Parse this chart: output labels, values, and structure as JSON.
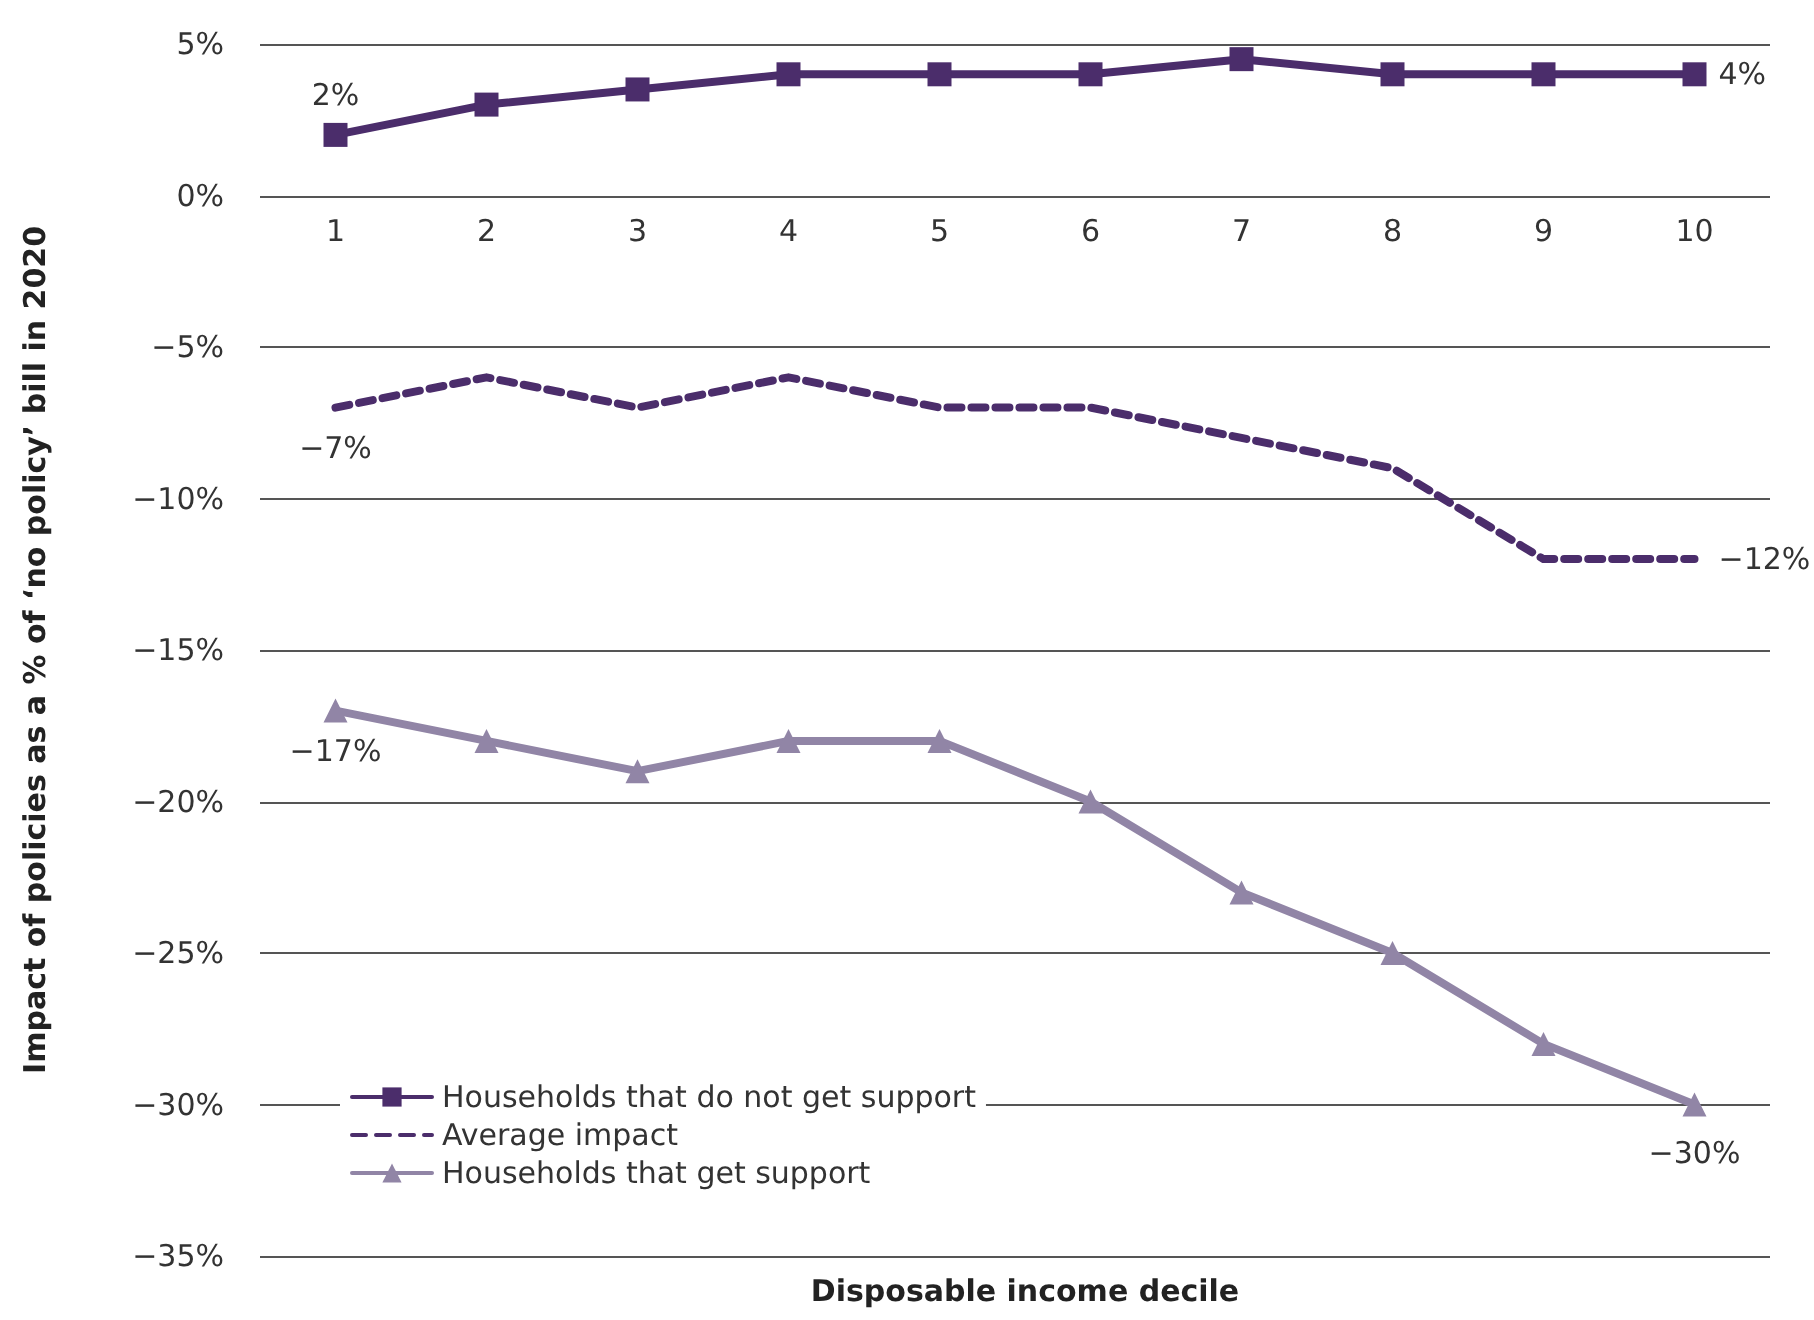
{
  "chart_data": {
    "type": "line",
    "xlabel": "Disposable income decile",
    "ylabel": "Impact of policies as a % of ‘no policy’ bill in 2020",
    "categories": [
      "1",
      "2",
      "3",
      "4",
      "5",
      "6",
      "7",
      "8",
      "9",
      "10"
    ],
    "series": [
      {
        "name": "Households that do not get support",
        "color": "#4b2d6b",
        "marker": "square",
        "line_style": "solid",
        "values": [
          2,
          3,
          3.5,
          4,
          4,
          4,
          4.5,
          4,
          4,
          4
        ]
      },
      {
        "name": "Average impact",
        "color": "#4b2d6b",
        "marker": "none",
        "line_style": "dashed",
        "values": [
          -7,
          -6,
          -7,
          -6,
          -7,
          -7,
          -8,
          -9,
          -12,
          -12
        ]
      },
      {
        "name": "Households that get support",
        "color": "#9185a6",
        "marker": "triangle",
        "line_style": "solid",
        "values": [
          -17,
          -18,
          -19,
          -18,
          -18,
          -20,
          -23,
          -25,
          -28,
          -30
        ]
      }
    ],
    "ylim": [
      -35,
      5
    ],
    "yticks": [
      {
        "value": -35,
        "label": "−35%"
      },
      {
        "value": -30,
        "label": "−30%"
      },
      {
        "value": -25,
        "label": "−25%"
      },
      {
        "value": -20,
        "label": "−20%"
      },
      {
        "value": -15,
        "label": "−15%"
      },
      {
        "value": -10,
        "label": "−10%"
      },
      {
        "value": -5,
        "label": "−5%"
      },
      {
        "value": 0,
        "label": "0%"
      },
      {
        "value": 5,
        "label": "5%"
      }
    ],
    "grid": "y",
    "legend": "bottom left",
    "annotations": [
      {
        "text": "2%",
        "x": "1",
        "y": 2
      },
      {
        "text": "4%",
        "x": "10",
        "y": 4
      },
      {
        "text": "−7%",
        "x": "1",
        "y": -7
      },
      {
        "text": "−12%",
        "x": "10",
        "y": -12
      },
      {
        "text": "−17%",
        "x": "1",
        "y": -17
      },
      {
        "text": "−30%",
        "x": "10",
        "y": -30
      }
    ]
  }
}
